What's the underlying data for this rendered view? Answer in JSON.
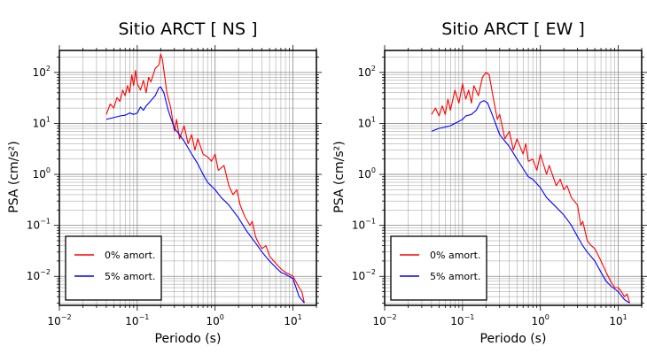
{
  "chart_data": [
    {
      "type": "line",
      "title": "Sitio ARCT [ NS ]",
      "xlabel": "Periodo (s)",
      "ylabel": "PSA (cm/s²)",
      "x_scale": "log",
      "y_scale": "log",
      "xlim": [
        0.01,
        20
      ],
      "ylim": [
        0.0027,
        270
      ],
      "grid": true,
      "legend_position": "bottom-left",
      "x_ticks": [
        {
          "base": "10",
          "exp": "−2"
        },
        {
          "base": "10",
          "exp": "−1"
        },
        {
          "base": "10",
          "exp": "0"
        },
        {
          "base": "10",
          "exp": "1"
        }
      ],
      "y_ticks": [
        {
          "base": "10",
          "exp": "−2"
        },
        {
          "base": "10",
          "exp": "−1"
        },
        {
          "base": "10",
          "exp": "0"
        },
        {
          "base": "10",
          "exp": "1"
        },
        {
          "base": "10",
          "exp": "2"
        }
      ],
      "series": [
        {
          "name": "0% amort.",
          "color": "#ff0000",
          "points": [
            [
              0.04,
              15
            ],
            [
              0.045,
              24
            ],
            [
              0.05,
              20
            ],
            [
              0.055,
              32
            ],
            [
              0.06,
              27
            ],
            [
              0.065,
              45
            ],
            [
              0.07,
              35
            ],
            [
              0.075,
              55
            ],
            [
              0.08,
              40
            ],
            [
              0.085,
              90
            ],
            [
              0.09,
              55
            ],
            [
              0.095,
              110
            ],
            [
              0.1,
              60
            ],
            [
              0.11,
              45
            ],
            [
              0.12,
              70
            ],
            [
              0.13,
              40
            ],
            [
              0.14,
              80
            ],
            [
              0.15,
              65
            ],
            [
              0.17,
              120
            ],
            [
              0.19,
              140
            ],
            [
              0.2,
              230
            ],
            [
              0.21,
              180
            ],
            [
              0.22,
              110
            ],
            [
              0.24,
              40
            ],
            [
              0.27,
              20
            ],
            [
              0.3,
              7
            ],
            [
              0.32,
              12
            ],
            [
              0.35,
              5
            ],
            [
              0.4,
              9
            ],
            [
              0.45,
              4
            ],
            [
              0.5,
              6
            ],
            [
              0.55,
              3
            ],
            [
              0.6,
              5
            ],
            [
              0.7,
              2.5
            ],
            [
              0.8,
              2.2
            ],
            [
              0.9,
              1.8
            ],
            [
              1.0,
              2.5
            ],
            [
              1.1,
              1.2
            ],
            [
              1.3,
              1.5
            ],
            [
              1.5,
              0.6
            ],
            [
              1.7,
              0.4
            ],
            [
              1.9,
              0.5
            ],
            [
              2.1,
              0.25
            ],
            [
              2.4,
              0.15
            ],
            [
              2.8,
              0.1
            ],
            [
              3.0,
              0.12
            ],
            [
              3.3,
              0.06
            ],
            [
              3.6,
              0.045
            ],
            [
              4,
              0.035
            ],
            [
              4.5,
              0.04
            ],
            [
              5,
              0.025
            ],
            [
              6,
              0.018
            ],
            [
              7,
              0.014
            ],
            [
              8,
              0.012
            ],
            [
              9,
              0.011
            ],
            [
              10,
              0.01
            ],
            [
              12,
              0.006
            ],
            [
              13,
              0.005
            ],
            [
              14,
              0.003
            ]
          ]
        },
        {
          "name": "5% amort.",
          "color": "#0000ff",
          "points": [
            [
              0.04,
              12
            ],
            [
              0.05,
              13
            ],
            [
              0.06,
              14
            ],
            [
              0.07,
              14.5
            ],
            [
              0.08,
              16
            ],
            [
              0.09,
              15
            ],
            [
              0.1,
              16
            ],
            [
              0.11,
              21
            ],
            [
              0.12,
              18
            ],
            [
              0.13,
              22
            ],
            [
              0.15,
              28
            ],
            [
              0.17,
              35
            ],
            [
              0.19,
              50
            ],
            [
              0.2,
              52
            ],
            [
              0.22,
              40
            ],
            [
              0.25,
              18
            ],
            [
              0.3,
              8
            ],
            [
              0.35,
              6
            ],
            [
              0.4,
              4.5
            ],
            [
              0.5,
              2.5
            ],
            [
              0.6,
              1.6
            ],
            [
              0.7,
              1
            ],
            [
              0.8,
              0.7
            ],
            [
              1.0,
              0.5
            ],
            [
              1.2,
              0.35
            ],
            [
              1.5,
              0.25
            ],
            [
              2.0,
              0.14
            ],
            [
              2.5,
              0.08
            ],
            [
              3,
              0.055
            ],
            [
              3.5,
              0.04
            ],
            [
              4,
              0.03
            ],
            [
              5,
              0.02
            ],
            [
              6,
              0.015
            ],
            [
              7,
              0.012
            ],
            [
              8,
              0.011
            ],
            [
              10,
              0.009
            ],
            [
              12,
              0.004
            ],
            [
              14,
              0.003
            ]
          ]
        }
      ]
    },
    {
      "type": "line",
      "title": "Sitio ARCT [ EW ]",
      "xlabel": "Periodo (s)",
      "ylabel": "PSA (cm/s²)",
      "x_scale": "log",
      "y_scale": "log",
      "xlim": [
        0.01,
        20
      ],
      "ylim": [
        0.0027,
        270
      ],
      "grid": true,
      "legend_position": "bottom-left",
      "x_ticks": [
        {
          "base": "10",
          "exp": "−2"
        },
        {
          "base": "10",
          "exp": "−1"
        },
        {
          "base": "10",
          "exp": "0"
        },
        {
          "base": "10",
          "exp": "1"
        }
      ],
      "y_ticks": [
        {
          "base": "10",
          "exp": "−2"
        },
        {
          "base": "10",
          "exp": "−1"
        },
        {
          "base": "10",
          "exp": "0"
        },
        {
          "base": "10",
          "exp": "1"
        },
        {
          "base": "10",
          "exp": "2"
        }
      ],
      "series": [
        {
          "name": "0% amort.",
          "color": "#ff0000",
          "points": [
            [
              0.04,
              15
            ],
            [
              0.045,
              20
            ],
            [
              0.05,
              14
            ],
            [
              0.055,
              22
            ],
            [
              0.06,
              15
            ],
            [
              0.065,
              30
            ],
            [
              0.07,
              18
            ],
            [
              0.08,
              45
            ],
            [
              0.09,
              25
            ],
            [
              0.1,
              60
            ],
            [
              0.11,
              30
            ],
            [
              0.12,
              45
            ],
            [
              0.13,
              25
            ],
            [
              0.14,
              55
            ],
            [
              0.16,
              35
            ],
            [
              0.18,
              80
            ],
            [
              0.2,
              100
            ],
            [
              0.22,
              90
            ],
            [
              0.25,
              30
            ],
            [
              0.28,
              12
            ],
            [
              0.3,
              15
            ],
            [
              0.35,
              5
            ],
            [
              0.4,
              7
            ],
            [
              0.45,
              3
            ],
            [
              0.5,
              5
            ],
            [
              0.6,
              2.5
            ],
            [
              0.65,
              4
            ],
            [
              0.7,
              1.8
            ],
            [
              0.8,
              2
            ],
            [
              0.9,
              1.2
            ],
            [
              1.0,
              2.5
            ],
            [
              1.2,
              1.0
            ],
            [
              1.3,
              1.5
            ],
            [
              1.6,
              0.6
            ],
            [
              1.8,
              0.8
            ],
            [
              2.0,
              0.5
            ],
            [
              2.2,
              0.6
            ],
            [
              2.5,
              0.35
            ],
            [
              3.0,
              0.25
            ],
            [
              3.3,
              0.1
            ],
            [
              3.5,
              0.12
            ],
            [
              4,
              0.05
            ],
            [
              4.5,
              0.04
            ],
            [
              5,
              0.035
            ],
            [
              6,
              0.02
            ],
            [
              7,
              0.012
            ],
            [
              8,
              0.008
            ],
            [
              9,
              0.006
            ],
            [
              10,
              0.006
            ],
            [
              11,
              0.005
            ],
            [
              12,
              0.004
            ],
            [
              13,
              0.0045
            ],
            [
              14,
              0.003
            ]
          ]
        },
        {
          "name": "5% amort.",
          "color": "#0000ff",
          "points": [
            [
              0.04,
              7
            ],
            [
              0.05,
              8
            ],
            [
              0.06,
              8.5
            ],
            [
              0.07,
              9
            ],
            [
              0.08,
              10
            ],
            [
              0.09,
              11
            ],
            [
              0.1,
              12
            ],
            [
              0.11,
              14
            ],
            [
              0.13,
              15
            ],
            [
              0.15,
              18
            ],
            [
              0.17,
              26
            ],
            [
              0.19,
              28
            ],
            [
              0.21,
              25
            ],
            [
              0.24,
              15
            ],
            [
              0.28,
              8
            ],
            [
              0.3,
              6
            ],
            [
              0.35,
              4.5
            ],
            [
              0.4,
              3.5
            ],
            [
              0.5,
              2
            ],
            [
              0.6,
              1.3
            ],
            [
              0.7,
              0.9
            ],
            [
              0.8,
              0.8
            ],
            [
              1.0,
              0.55
            ],
            [
              1.2,
              0.35
            ],
            [
              1.5,
              0.25
            ],
            [
              2.0,
              0.16
            ],
            [
              2.5,
              0.1
            ],
            [
              3,
              0.06
            ],
            [
              3.5,
              0.04
            ],
            [
              4,
              0.03
            ],
            [
              5,
              0.02
            ],
            [
              6,
              0.012
            ],
            [
              7,
              0.008
            ],
            [
              8,
              0.0065
            ],
            [
              10,
              0.005
            ],
            [
              12,
              0.0035
            ],
            [
              14,
              0.003
            ]
          ]
        }
      ]
    }
  ]
}
